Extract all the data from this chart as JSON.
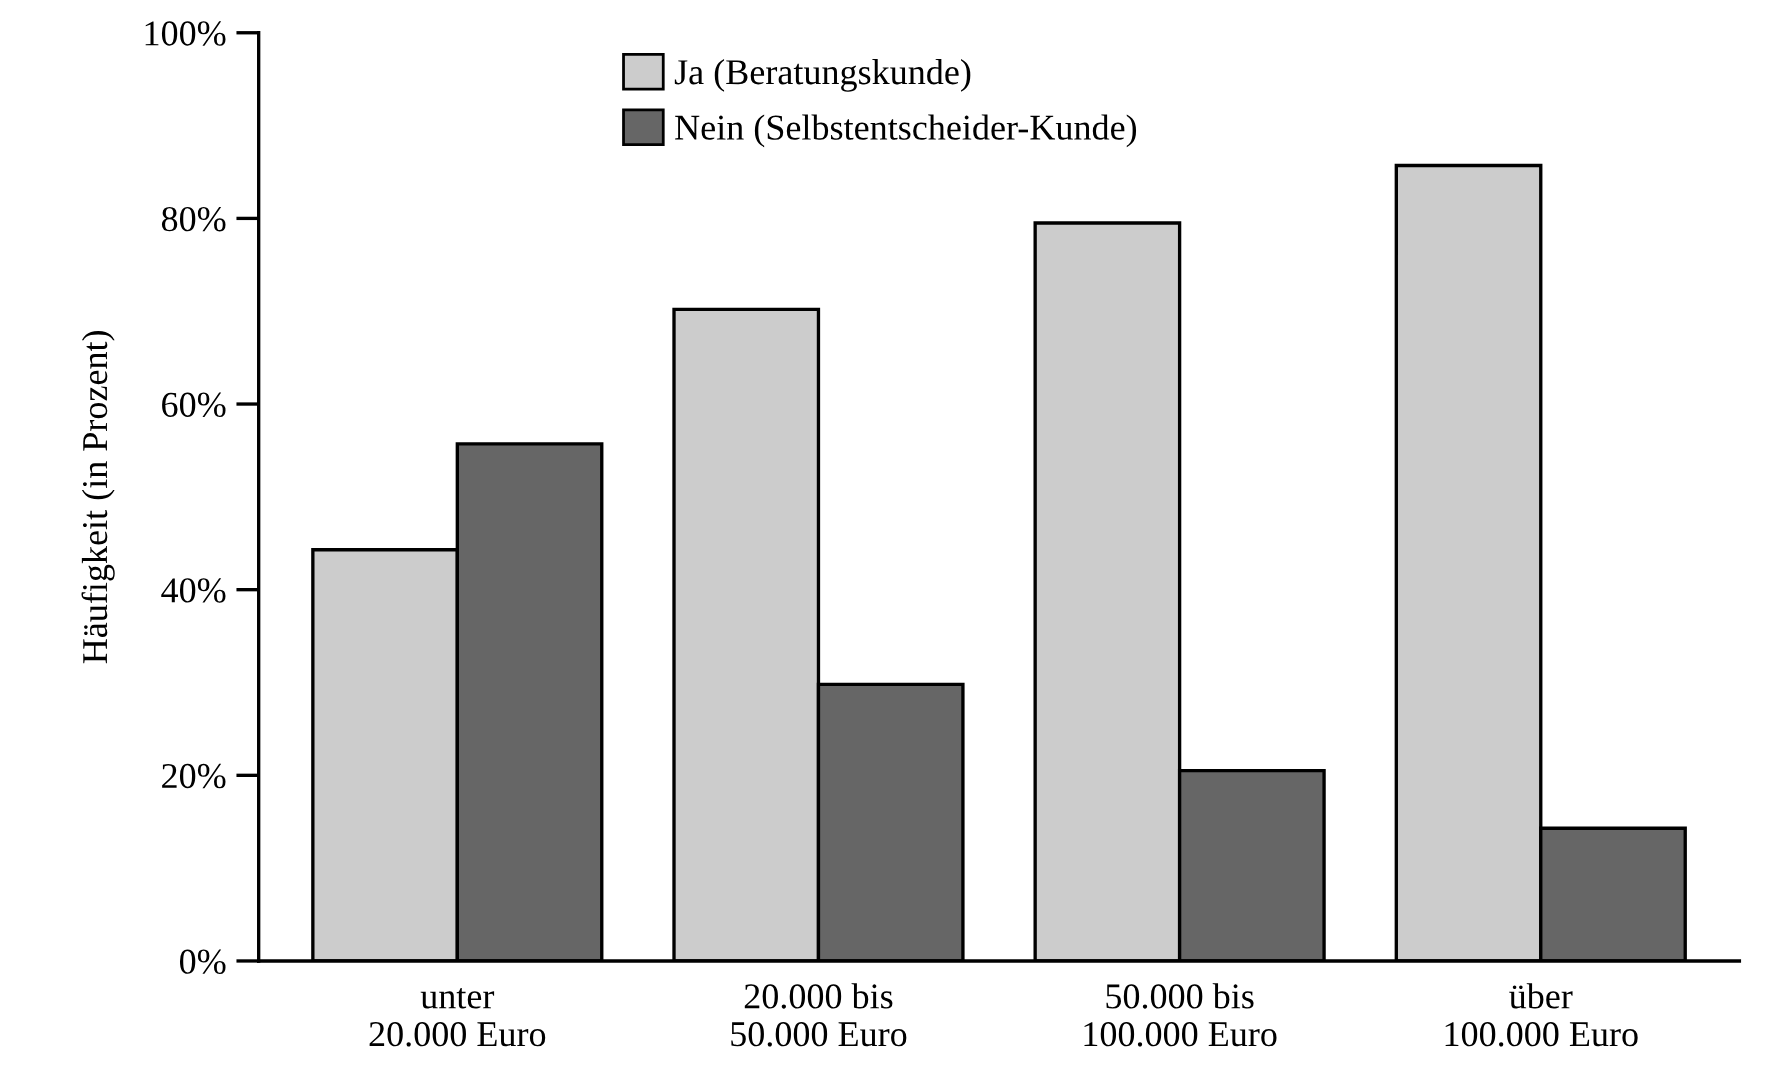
{
  "chart_data": {
    "type": "bar",
    "ylabel": "Häufigkeit (in Prozent)",
    "categories": [
      "unter\n20.000 Euro",
      "20.000 bis\n50.000 Euro",
      "50.000 bis\n100.000 Euro",
      "über\n100.000 Euro"
    ],
    "series": [
      {
        "name": "Ja (Beratungskunde)",
        "color": "#cccccc",
        "values": [
          44.3,
          70.2,
          79.5,
          85.7
        ]
      },
      {
        "name": "Nein (Selbstentscheider-Kunde)",
        "color": "#666666",
        "values": [
          55.7,
          29.8,
          20.5,
          14.3
        ]
      }
    ],
    "ylim": [
      0,
      100
    ],
    "yticks": [
      {
        "value": 0,
        "label": "0%"
      },
      {
        "value": 20,
        "label": "20%"
      },
      {
        "value": 40,
        "label": "40%"
      },
      {
        "value": 60,
        "label": "60%"
      },
      {
        "value": 80,
        "label": "80%"
      },
      {
        "value": 100,
        "label": "100%"
      }
    ],
    "grid": false,
    "legend": "top"
  }
}
